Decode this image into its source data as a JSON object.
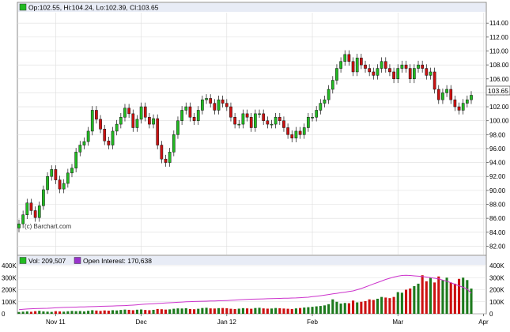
{
  "colors": {
    "up": "#22bb22",
    "down": "#cc1111",
    "outline": "#111111",
    "open_interest": "#cc33cc",
    "grid": "#dddddd",
    "legend_bg": "#e8ecf6",
    "volume_legend_swatch": "#22bb22",
    "oi_legend_swatch": "#9933cc"
  },
  "legend": {
    "ohlc": "Op:102.55, Hi:104.24, Lo:102.39, Cl:103.65",
    "volume": "Vol: 209,507",
    "open_interest": "Open Interest: 170,638"
  },
  "watermark": "(c) Barchart.com",
  "last_price_label": "103.65",
  "chart_data": [
    {
      "type": "candlestick",
      "title": "",
      "x_tick_labels": [
        "Nov 11",
        "Dec",
        "Jan 12",
        "Feb",
        "Mar",
        "Apr"
      ],
      "x_tick_positions": [
        9,
        30,
        51,
        72,
        93,
        114
      ],
      "y_ticks": [
        "82.00",
        "84.00",
        "86.00",
        "88.00",
        "90.00",
        "92.00",
        "94.00",
        "96.00",
        "98.00",
        "100.00",
        "102.00",
        "104.00",
        "106.00",
        "108.00",
        "110.00",
        "112.00",
        "114.00"
      ],
      "ylim": [
        80.8,
        115.5
      ],
      "grid": true,
      "close": [
        85.2,
        86.5,
        88.2,
        87.1,
        86.1,
        87.8,
        90.1,
        92.0,
        93.0,
        91.5,
        90.2,
        91.0,
        92.5,
        93.2,
        95.5,
        96.5,
        97.0,
        98.5,
        101.5,
        100.2,
        98.8,
        97.1,
        96.5,
        98.5,
        99.5,
        100.5,
        101.8,
        101.0,
        99.0,
        100.2,
        102.0,
        100.5,
        99.5,
        100.3,
        96.5,
        94.5,
        94.0,
        95.5,
        98.0,
        100.0,
        101.5,
        102.0,
        100.5,
        100.0,
        101.5,
        103.0,
        103.2,
        102.5,
        101.5,
        103.0,
        102.5,
        102.0,
        100.5,
        99.5,
        99.5,
        101.0,
        100.5,
        99.0,
        101.0,
        101.0,
        100.0,
        99.5,
        99.5,
        100.5,
        100.0,
        99.0,
        98.0,
        97.5,
        98.5,
        98.0,
        99.0,
        100.5,
        100.5,
        101.5,
        102.5,
        103.0,
        104.5,
        105.8,
        107.5,
        108.5,
        109.5,
        108.5,
        107.0,
        109.0,
        108.0,
        107.5,
        107.0,
        106.5,
        107.5,
        108.5,
        107.5,
        107.0,
        106.0,
        107.5,
        108.0,
        107.5,
        106.0,
        107.5,
        108.0,
        107.5,
        106.5,
        107.0,
        104.5,
        103.0,
        104.0,
        104.5,
        103.0,
        102.0,
        101.5,
        102.5,
        103.0,
        103.65
      ],
      "volume_panel": {
        "y_ticks": [
          "0",
          "100K",
          "200K",
          "300K",
          "400K"
        ],
        "ylim": [
          0,
          400000
        ],
        "volume": [
          15000,
          18000,
          20000,
          17000,
          22000,
          25000,
          20000,
          18000,
          16000,
          22000,
          20000,
          18000,
          21000,
          24000,
          22000,
          23000,
          20000,
          25000,
          30000,
          27000,
          24000,
          28000,
          26000,
          30000,
          28000,
          32000,
          35000,
          33000,
          30000,
          34000,
          36000,
          32000,
          30000,
          33000,
          40000,
          38000,
          35000,
          37000,
          42000,
          45000,
          44000,
          46000,
          40000,
          38000,
          42000,
          48000,
          50000,
          45000,
          44000,
          47000,
          48000,
          46000,
          42000,
          40000,
          43000,
          47000,
          45000,
          42000,
          48000,
          50000,
          45000,
          43000,
          44000,
          48000,
          46000,
          44000,
          42000,
          40000,
          45000,
          48000,
          52000,
          55000,
          58000,
          62000,
          65000,
          70000,
          80000,
          120000,
          100000,
          85000,
          90000,
          88000,
          110000,
          95000,
          100000,
          105000,
          120000,
          115000,
          125000,
          140000,
          135000,
          130000,
          140000,
          180000,
          175000,
          200000,
          210000,
          230000,
          250000,
          320000,
          270000,
          300000,
          260000,
          310000,
          280000,
          300000,
          260000,
          250000,
          290000,
          300000,
          280000,
          209507
        ],
        "open_interest": [
          35000,
          38000,
          40000,
          42000,
          43000,
          44000,
          45000,
          46000,
          48000,
          50000,
          52000,
          53000,
          54000,
          55000,
          56000,
          57000,
          58000,
          59000,
          60000,
          61000,
          62000,
          63000,
          64000,
          65000,
          66000,
          67000,
          68000,
          70000,
          72000,
          75000,
          78000,
          80000,
          82000,
          84000,
          86000,
          88000,
          90000,
          92000,
          94000,
          96000,
          98000,
          100000,
          101000,
          102000,
          103000,
          104000,
          105000,
          106000,
          107000,
          108000,
          109000,
          110000,
          112000,
          114000,
          116000,
          118000,
          120000,
          121000,
          122000,
          123000,
          124000,
          125000,
          126000,
          127000,
          128000,
          129000,
          130000,
          131000,
          132000,
          134000,
          136000,
          138000,
          142000,
          146000,
          150000,
          155000,
          160000,
          165000,
          170000,
          175000,
          180000,
          185000,
          190000,
          200000,
          210000,
          222000,
          235000,
          248000,
          260000,
          272000,
          285000,
          295000,
          305000,
          312000,
          318000,
          320000,
          318000,
          315000,
          312000,
          310000,
          305000,
          300000,
          295000,
          290000,
          280000,
          270000,
          258000,
          245000,
          232000,
          220000,
          205000,
          170638
        ]
      }
    }
  ]
}
